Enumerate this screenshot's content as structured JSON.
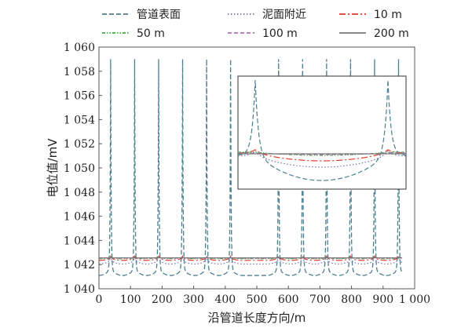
{
  "chart_data": {
    "type": "line",
    "xlabel": "沿管道长度方向/m",
    "ylabel": "电位值/mV",
    "xlim": [
      0,
      1000
    ],
    "ylim": [
      1040,
      1060
    ],
    "x_ticks": [
      0,
      100,
      200,
      300,
      400,
      500,
      600,
      700,
      800,
      900,
      1000
    ],
    "x_tick_labels": [
      "0",
      "100",
      "200",
      "300",
      "400",
      "500",
      "600",
      "700",
      "800",
      "900",
      "1 000"
    ],
    "y_ticks": [
      1040,
      1042,
      1044,
      1046,
      1048,
      1050,
      1052,
      1054,
      1056,
      1058,
      1060
    ],
    "y_tick_labels": [
      "1 040",
      "1 042",
      "1 044",
      "1 046",
      "1 048",
      "1 050",
      "1 052",
      "1 054",
      "1 056",
      "1 058",
      "1 060"
    ],
    "spike_positions": [
      37,
      113,
      189,
      265,
      341,
      417,
      569,
      645,
      721,
      797,
      873,
      949
    ],
    "legend_position": "top",
    "inset": true,
    "series": [
      {
        "name": "管道表面",
        "color": "#4a7f8f",
        "style": "long-dash",
        "baseline": 1041.6,
        "peak": 1059.0
      },
      {
        "name": "泥面附近",
        "color": "#7a6fae",
        "style": "dotted",
        "baseline": 1042.3,
        "peak": 1042.7
      },
      {
        "name": "10 m",
        "color": "#e03a2a",
        "style": "dash-dot",
        "baseline": 1042.5,
        "peak": 1042.7
      },
      {
        "name": "50 m",
        "color": "#3fae3a",
        "style": "dash-dot-dot",
        "baseline": 1042.55,
        "peak": 1042.6
      },
      {
        "name": "100 m",
        "color": "#b06fb8",
        "style": "dashed",
        "baseline": 1042.55,
        "peak": 1042.58
      },
      {
        "name": "200 m",
        "color": "#777777",
        "style": "solid",
        "baseline": 1042.56,
        "peak": 1042.57
      }
    ]
  }
}
